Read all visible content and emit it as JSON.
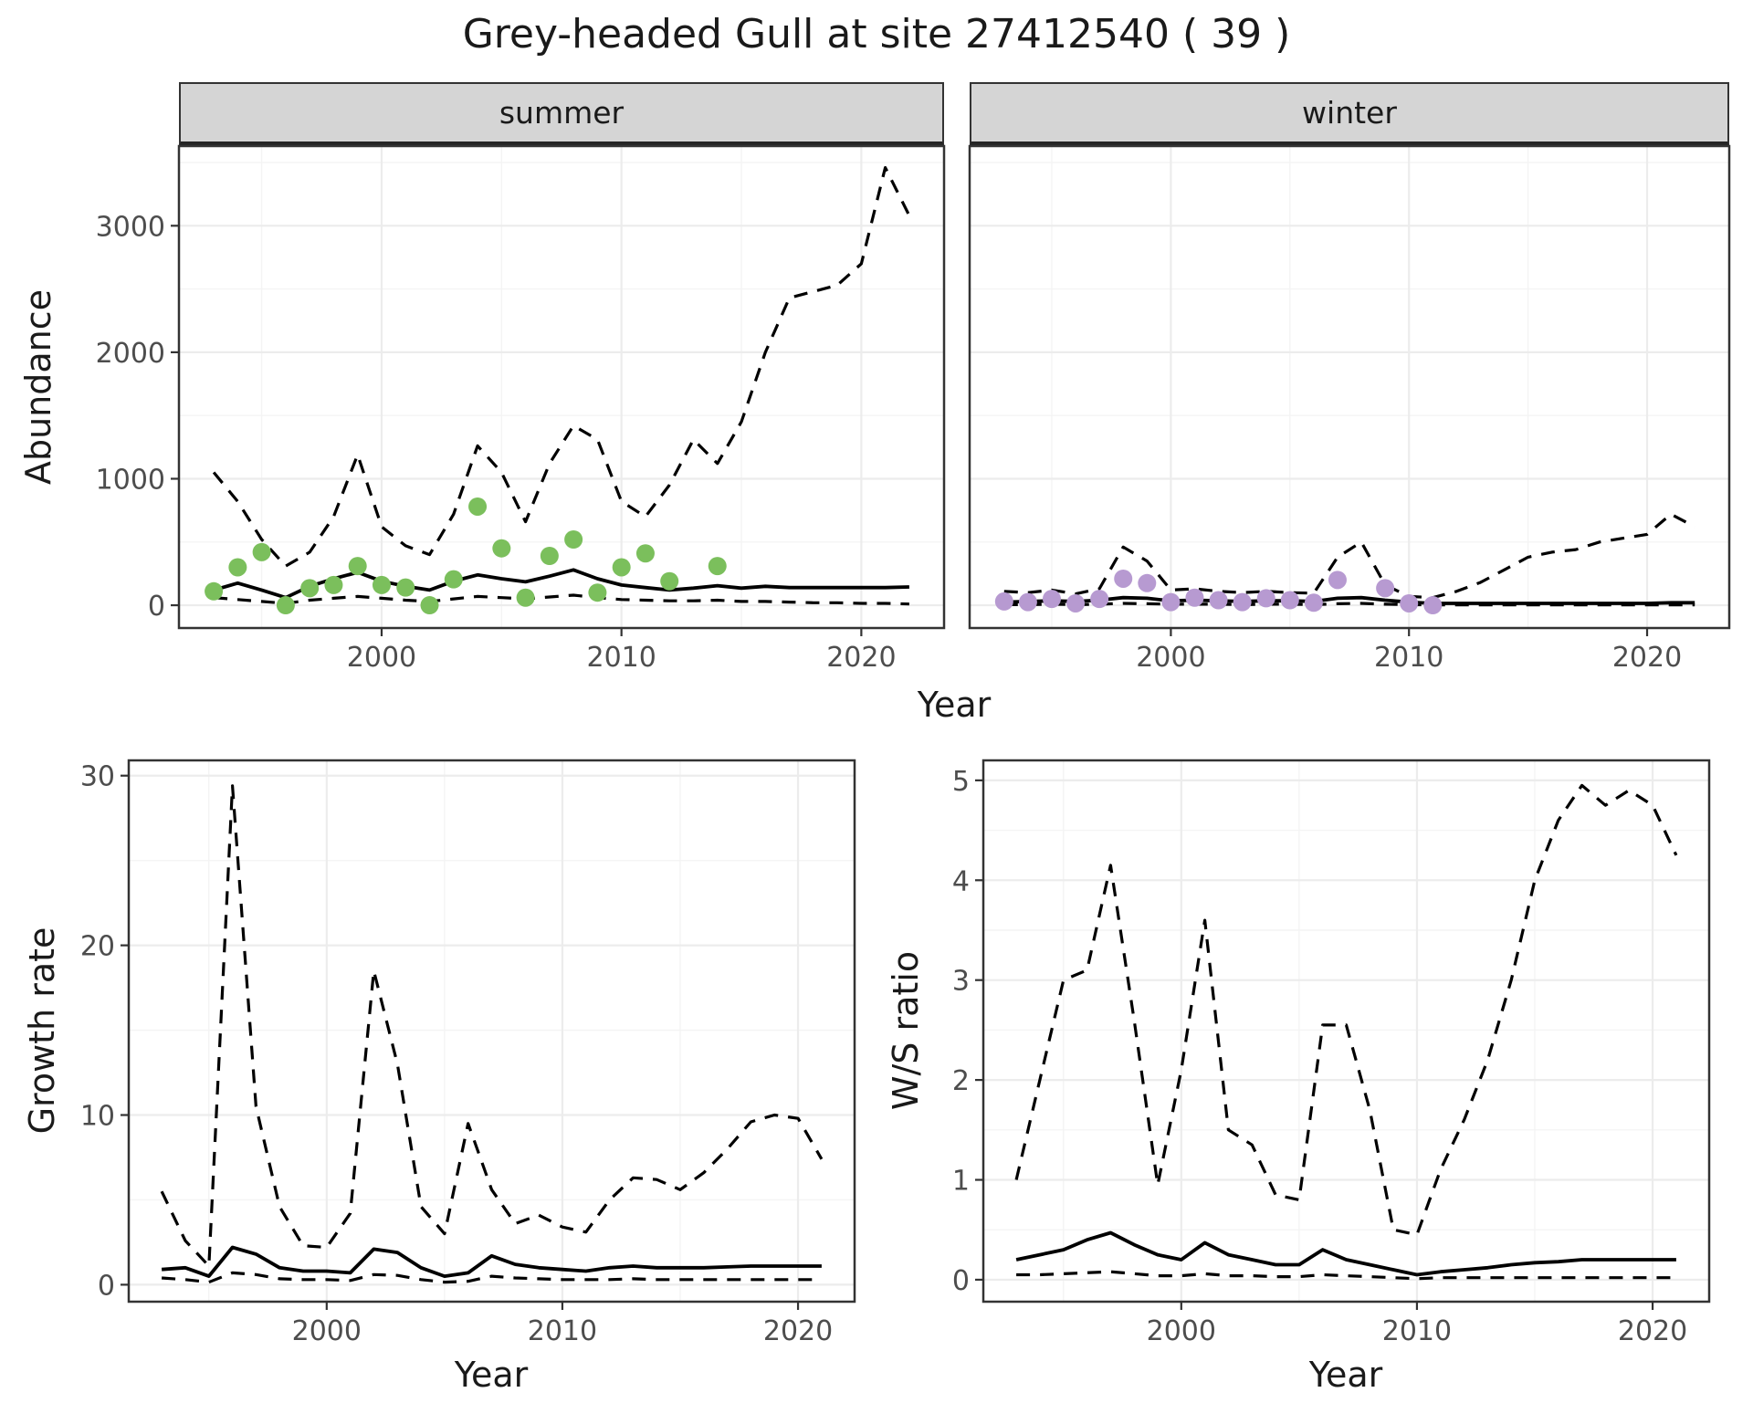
{
  "title": "Grey-headed Gull at site 27412540 ( 39 )",
  "facets": {
    "summer": "summer",
    "winter": "winter"
  },
  "labels": {
    "abundance": "Abundance",
    "year": "Year",
    "growth_rate": "Growth rate",
    "ws_ratio": "W/S ratio"
  },
  "colors": {
    "summer_points": "#7bbf5c",
    "winter_points": "#b79ad1",
    "line": "#000000",
    "panel_border": "#333333",
    "grid_major": "#ececec",
    "grid_minor": "#f4f4f4",
    "strip_bg": "#d5d5d5",
    "tick_text": "#4d4d4d"
  },
  "chart_data": [
    {
      "id": "abundance_summer",
      "type": "line",
      "facet_label": "summer",
      "title": "Grey-headed Gull at site 27412540 ( 39 )",
      "xlabel": "Year",
      "ylabel": "Abundance",
      "xlim": [
        1991.55,
        2023.45
      ],
      "ylim": [
        -180,
        3630
      ],
      "xticks": [
        2000,
        2010,
        2020
      ],
      "yticks": [
        0,
        1000,
        2000,
        3000
      ],
      "grid": true,
      "x": [
        1993,
        1994,
        1995,
        1996,
        1997,
        1998,
        1999,
        2000,
        2001,
        2002,
        2003,
        2004,
        2005,
        2006,
        2007,
        2008,
        2009,
        2010,
        2011,
        2012,
        2013,
        2014,
        2015,
        2016,
        2017,
        2018,
        2019,
        2020,
        2021,
        2022
      ],
      "series": [
        {
          "name": "median_fit",
          "style": "solid",
          "values": [
            120,
            175,
            120,
            60,
            150,
            210,
            260,
            190,
            150,
            120,
            190,
            240,
            210,
            185,
            230,
            280,
            210,
            160,
            140,
            120,
            135,
            155,
            135,
            150,
            140,
            140,
            140,
            140,
            140,
            145
          ]
        },
        {
          "name": "upper_ci",
          "style": "dashed",
          "values": [
            1050,
            820,
            520,
            310,
            420,
            700,
            1190,
            620,
            470,
            400,
            720,
            1260,
            1050,
            660,
            1120,
            1420,
            1310,
            820,
            700,
            950,
            1310,
            1120,
            1450,
            2000,
            2430,
            2480,
            2530,
            2700,
            3460,
            3080
          ]
        },
        {
          "name": "lower_ci",
          "style": "dashed",
          "values": [
            60,
            45,
            30,
            15,
            40,
            55,
            70,
            55,
            40,
            30,
            50,
            70,
            60,
            50,
            65,
            80,
            60,
            45,
            40,
            35,
            35,
            40,
            30,
            30,
            25,
            20,
            20,
            15,
            15,
            10
          ]
        },
        {
          "name": "observed_counts",
          "style": "points",
          "color": "#7bbf5c",
          "x": [
            1993,
            1994,
            1995,
            1996,
            1997,
            1998,
            1999,
            2000,
            2001,
            2002,
            2003,
            2004,
            2005,
            2006,
            2007,
            2008,
            2009,
            2010,
            2011,
            2012,
            2014
          ],
          "values": [
            110,
            300,
            420,
            0,
            135,
            160,
            310,
            160,
            140,
            0,
            205,
            780,
            450,
            60,
            390,
            520,
            100,
            300,
            410,
            190,
            310
          ]
        }
      ]
    },
    {
      "id": "abundance_winter",
      "type": "line",
      "facet_label": "winter",
      "xlabel": "Year",
      "ylabel": "Abundance",
      "xlim": [
        1991.55,
        2023.45
      ],
      "ylim": [
        -180,
        3630
      ],
      "xticks": [
        2000,
        2010,
        2020
      ],
      "yticks": [
        0,
        1000,
        2000,
        3000
      ],
      "grid": true,
      "x": [
        1993,
        1994,
        1995,
        1996,
        1997,
        1998,
        1999,
        2000,
        2001,
        2002,
        2003,
        2004,
        2005,
        2006,
        2007,
        2008,
        2009,
        2010,
        2011,
        2012,
        2013,
        2014,
        2015,
        2016,
        2017,
        2018,
        2019,
        2020,
        2021,
        2022
      ],
      "series": [
        {
          "name": "median_fit",
          "style": "solid",
          "values": [
            25,
            30,
            35,
            30,
            40,
            60,
            55,
            35,
            40,
            35,
            30,
            35,
            35,
            30,
            55,
            60,
            40,
            25,
            15,
            15,
            15,
            15,
            15,
            15,
            15,
            15,
            15,
            15,
            20,
            20
          ]
        },
        {
          "name": "upper_ci",
          "style": "dashed",
          "values": [
            110,
            100,
            120,
            90,
            130,
            460,
            350,
            120,
            130,
            110,
            100,
            110,
            100,
            95,
            380,
            500,
            160,
            70,
            60,
            110,
            180,
            280,
            380,
            420,
            440,
            500,
            530,
            560,
            720,
            620
          ]
        },
        {
          "name": "lower_ci",
          "style": "dashed",
          "values": [
            5,
            5,
            8,
            5,
            8,
            15,
            12,
            8,
            8,
            8,
            5,
            8,
            8,
            5,
            12,
            15,
            8,
            5,
            3,
            3,
            3,
            3,
            3,
            3,
            3,
            3,
            3,
            3,
            3,
            3
          ]
        },
        {
          "name": "observed_counts",
          "style": "points",
          "color": "#b79ad1",
          "x": [
            1993,
            1994,
            1995,
            1996,
            1997,
            1998,
            1999,
            2000,
            2001,
            2002,
            2003,
            2004,
            2005,
            2006,
            2007,
            2009,
            2010,
            2011
          ],
          "values": [
            30,
            25,
            50,
            15,
            50,
            210,
            175,
            25,
            60,
            40,
            25,
            55,
            40,
            20,
            200,
            135,
            15,
            0
          ]
        }
      ]
    },
    {
      "id": "growth_rate",
      "type": "line",
      "xlabel": "Year",
      "ylabel": "Growth rate",
      "xlim": [
        1991.6,
        2022.4
      ],
      "ylim": [
        -1.0,
        30.9
      ],
      "xticks": [
        2000,
        2010,
        2020
      ],
      "yticks": [
        0,
        10,
        20,
        30
      ],
      "grid": true,
      "x": [
        1993,
        1994,
        1995,
        1996,
        1997,
        1998,
        1999,
        2000,
        2001,
        2002,
        2003,
        2004,
        2005,
        2006,
        2007,
        2008,
        2009,
        2010,
        2011,
        2012,
        2013,
        2014,
        2015,
        2016,
        2017,
        2018,
        2019,
        2020,
        2021
      ],
      "series": [
        {
          "name": "median_fit",
          "style": "solid",
          "values": [
            0.9,
            1.0,
            0.5,
            2.2,
            1.8,
            1.0,
            0.8,
            0.8,
            0.7,
            2.1,
            1.9,
            1.0,
            0.5,
            0.7,
            1.7,
            1.2,
            1.0,
            0.9,
            0.8,
            1.0,
            1.1,
            1.0,
            1.0,
            1.0,
            1.05,
            1.1,
            1.1,
            1.1,
            1.1
          ]
        },
        {
          "name": "upper_ci",
          "style": "dashed",
          "values": [
            5.5,
            2.6,
            1.1,
            29.4,
            10.5,
            4.6,
            2.3,
            2.2,
            4.2,
            18.5,
            13.0,
            4.6,
            3.0,
            9.5,
            5.6,
            3.6,
            4.1,
            3.4,
            3.1,
            5.0,
            6.3,
            6.2,
            5.6,
            6.6,
            8.0,
            9.6,
            10.0,
            9.8,
            7.4
          ]
        },
        {
          "name": "lower_ci",
          "style": "dashed",
          "values": [
            0.4,
            0.3,
            0.15,
            0.7,
            0.6,
            0.35,
            0.3,
            0.3,
            0.25,
            0.6,
            0.55,
            0.3,
            0.15,
            0.2,
            0.5,
            0.4,
            0.35,
            0.3,
            0.3,
            0.3,
            0.35,
            0.3,
            0.3,
            0.3,
            0.3,
            0.3,
            0.3,
            0.3,
            0.3
          ]
        }
      ]
    },
    {
      "id": "ws_ratio",
      "type": "line",
      "xlabel": "Year",
      "ylabel": "W/S ratio",
      "xlim": [
        1991.6,
        2022.4
      ],
      "ylim": [
        -0.22,
        5.2
      ],
      "xticks": [
        2000,
        2010,
        2020
      ],
      "yticks": [
        0,
        1,
        2,
        3,
        4,
        5
      ],
      "grid": true,
      "x": [
        1993,
        1994,
        1995,
        1996,
        1997,
        1998,
        1999,
        2000,
        2001,
        2002,
        2003,
        2004,
        2005,
        2006,
        2007,
        2008,
        2009,
        2010,
        2011,
        2012,
        2013,
        2014,
        2015,
        2016,
        2017,
        2018,
        2019,
        2020,
        2021
      ],
      "series": [
        {
          "name": "median_fit",
          "style": "solid",
          "values": [
            0.2,
            0.25,
            0.3,
            0.4,
            0.47,
            0.35,
            0.25,
            0.2,
            0.37,
            0.25,
            0.2,
            0.15,
            0.15,
            0.3,
            0.2,
            0.15,
            0.1,
            0.05,
            0.08,
            0.1,
            0.12,
            0.15,
            0.17,
            0.18,
            0.2,
            0.2,
            0.2,
            0.2,
            0.2
          ]
        },
        {
          "name": "upper_ci",
          "style": "dashed",
          "values": [
            1.0,
            2.0,
            3.0,
            3.1,
            4.15,
            2.6,
            0.95,
            2.1,
            3.6,
            1.5,
            1.35,
            0.85,
            0.8,
            2.55,
            2.55,
            1.7,
            0.5,
            0.45,
            1.1,
            1.6,
            2.2,
            3.0,
            4.0,
            4.6,
            4.95,
            4.75,
            4.9,
            4.75,
            4.25
          ]
        },
        {
          "name": "lower_ci",
          "style": "dashed",
          "values": [
            0.05,
            0.05,
            0.06,
            0.07,
            0.08,
            0.06,
            0.04,
            0.04,
            0.06,
            0.04,
            0.04,
            0.03,
            0.03,
            0.05,
            0.04,
            0.03,
            0.02,
            0.01,
            0.02,
            0.02,
            0.02,
            0.02,
            0.02,
            0.02,
            0.02,
            0.02,
            0.02,
            0.02,
            0.02
          ]
        }
      ]
    }
  ]
}
